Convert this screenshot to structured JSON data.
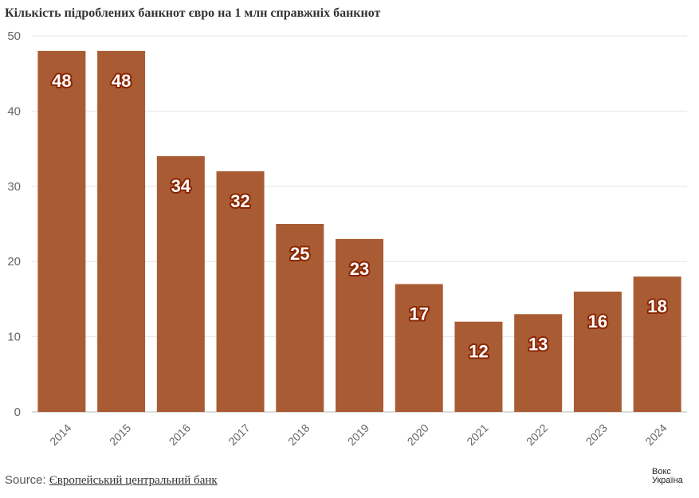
{
  "chart_data": {
    "type": "bar",
    "title": "Кількість підроблених банкнот євро на 1 млн справжніх банкнот",
    "categories": [
      "2014",
      "2015",
      "2016",
      "2017",
      "2018",
      "2019",
      "2020",
      "2021",
      "2022",
      "2023",
      "2024"
    ],
    "values": [
      48,
      48,
      34,
      32,
      25,
      23,
      17,
      12,
      13,
      16,
      18
    ],
    "yticks": [
      0,
      10,
      20,
      30,
      40,
      50
    ],
    "ylim": [
      0,
      50
    ],
    "xlabel": "",
    "ylabel": "",
    "grid": true,
    "colors": {
      "bar": "#a95c33",
      "label_fill": "#ffffff",
      "label_stroke": "#8b2500",
      "grid": "#e4e4e4",
      "axis_text": "#666666"
    }
  },
  "footer": {
    "source_prefix": "Source: ",
    "source_link": "Європейський центральний банк",
    "logo_line1": "Вокс",
    "logo_line2": "Україна"
  }
}
